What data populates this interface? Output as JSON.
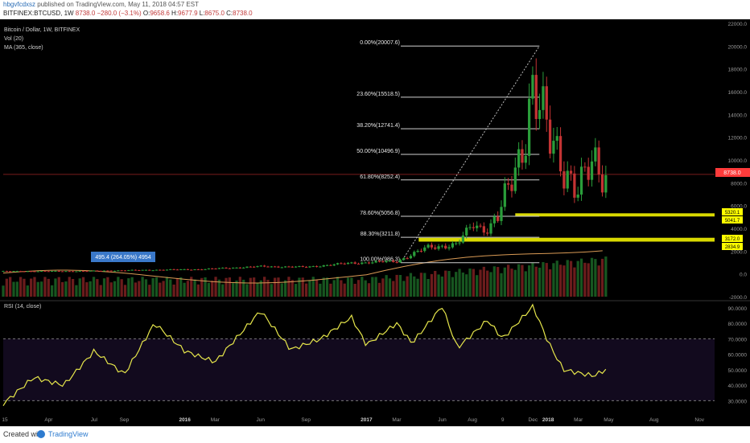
{
  "header": {
    "user": "hbgvfcdxsz",
    "published": "published on TradingView.com, May 11, 2018 04:57 EST",
    "symbol": "BITFINEX:BTCUSD, 1W",
    "last": "8738.0",
    "change": "−280.0 (−3.1%)",
    "o_label": "O:",
    "o": "9658.6",
    "h_label": "H:",
    "h": "9677.9",
    "l_label": "L:",
    "l": "8675.0",
    "c_label": "C:",
    "c": "8738.0"
  },
  "legend": {
    "title": "Bitcoin / Dollar, 1W, BITFINEX",
    "vol": "Vol (20)",
    "ma": "MA (365, close)",
    "rsi": "RSI (14, close)"
  },
  "colors": {
    "up": "#2a9d3a",
    "down": "#c33333",
    "rsi": "#e6e64b",
    "ma": "#d99a55",
    "fib": "#cfcfcf",
    "fib_fill": "#ffff00",
    "price_marker": "#ff4444",
    "axis_text": "#9a9a9a"
  },
  "price_axis": [
    "22000.0",
    "20000.0",
    "18000.0",
    "16000.0",
    "14000.0",
    "12000.0",
    "10000.0",
    "8000.0",
    "6000.0",
    "4000.0",
    "2000.0",
    "0.0",
    "-2000.0"
  ],
  "price_marker": "8738.0",
  "fib_levels": [
    {
      "label": "0.00%(20007.6)",
      "price": 20007.6
    },
    {
      "label": "23.60%(15518.5)",
      "price": 15518.5
    },
    {
      "label": "38.20%(12741.4)",
      "price": 12741.4
    },
    {
      "label": "50.00%(10496.9)",
      "price": 10496.9
    },
    {
      "label": "61.80%(8252.4)",
      "price": 8252.4
    },
    {
      "label": "78.60%(5056.8)",
      "price": 5056.8
    },
    {
      "label": "88.30%(3211.8)",
      "price": 3211.8
    },
    {
      "label": "100.00%(986.3)",
      "price": 986.3
    }
  ],
  "fib_boxes": [
    "5320.1",
    "5041.7",
    "3172.0",
    "2834.9"
  ],
  "measure_label": "495.4 (264.05%) 4954",
  "rsi_axis": [
    "90.0000",
    "80.0000",
    "70.0000",
    "60.0000",
    "50.0000",
    "40.0000",
    "30.0000"
  ],
  "time_axis": [
    "15",
    "Apr",
    "Jul",
    "Sep",
    "2016",
    "Mar",
    "Jun",
    "Sep",
    "2017",
    "Mar",
    "Jun",
    "Aug",
    "9",
    "Dec",
    "2018",
    "Mar",
    "May",
    "Aug",
    "Nov"
  ],
  "footer": {
    "created": "Created with",
    "brand": "TradingView"
  },
  "chart_data": {
    "type": "candlestick",
    "title": "Bitcoin / Dollar, 1W, BITFINEX",
    "price_ylim": [
      -2000,
      22000
    ],
    "rsi_ylim": [
      25,
      92
    ],
    "rsi_bands": [
      30,
      70
    ],
    "x_range": [
      "2015-01",
      "2018-11"
    ],
    "price_keypoints": [
      [
        "2015-01",
        230
      ],
      [
        "2015-06",
        240
      ],
      [
        "2015-11",
        350
      ],
      [
        "2016-02",
        400
      ],
      [
        "2016-06",
        650
      ],
      [
        "2016-09",
        600
      ],
      [
        "2016-12",
        950
      ],
      [
        "2017-03",
        1100
      ],
      [
        "2017-05",
        2300
      ],
      [
        "2017-07",
        2600
      ],
      [
        "2017-08",
        4300
      ],
      [
        "2017-09",
        3900
      ],
      [
        "2017-10",
        5800
      ],
      [
        "2017-11",
        9500
      ],
      [
        "2017-12",
        17000
      ],
      [
        "2018-01",
        11500
      ],
      [
        "2018-02",
        9800
      ],
      [
        "2018-03",
        7500
      ],
      [
        "2018-04",
        9300
      ],
      [
        "2018-05",
        8738
      ]
    ],
    "rsi_keypoints": [
      [
        "2015-01",
        28
      ],
      [
        "2015-03",
        45
      ],
      [
        "2015-05",
        40
      ],
      [
        "2015-07",
        62
      ],
      [
        "2015-09",
        47
      ],
      [
        "2015-11",
        80
      ],
      [
        "2016-01",
        62
      ],
      [
        "2016-03",
        55
      ],
      [
        "2016-06",
        88
      ],
      [
        "2016-08",
        63
      ],
      [
        "2016-10",
        70
      ],
      [
        "2016-12",
        84
      ],
      [
        "2017-01",
        66
      ],
      [
        "2017-03",
        80
      ],
      [
        "2017-04",
        67
      ],
      [
        "2017-06",
        91
      ],
      [
        "2017-07",
        64
      ],
      [
        "2017-09",
        82
      ],
      [
        "2017-10",
        70
      ],
      [
        "2017-12",
        91
      ],
      [
        "2018-01",
        68
      ],
      [
        "2018-02",
        50
      ],
      [
        "2018-04",
        46
      ],
      [
        "2018-05",
        51
      ]
    ],
    "volume_ma": "MA (365, close)"
  }
}
